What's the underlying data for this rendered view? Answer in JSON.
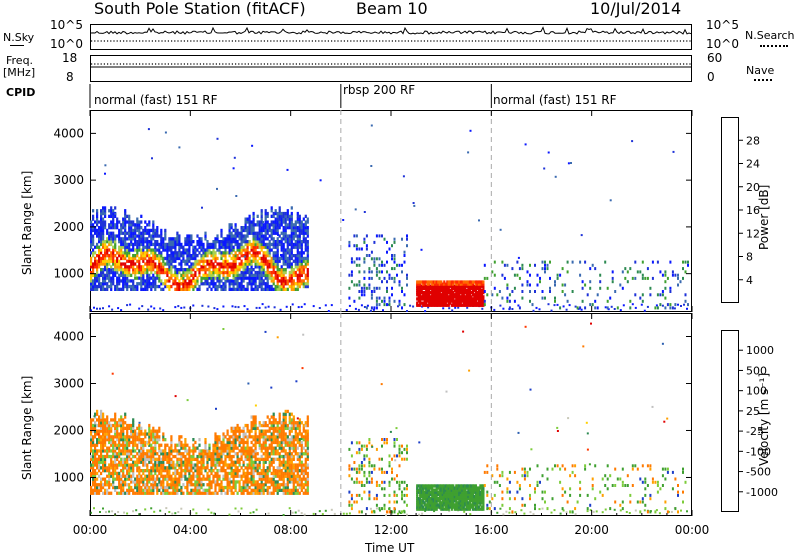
{
  "header": {
    "station": "South Pole Station (fitACF)",
    "beam": "Beam 10",
    "date": "10/Jul/2014"
  },
  "top_panels": {
    "nsky_label": "N.Sky",
    "nsearch_label": "N.Search",
    "noise_top_tick": "10^5",
    "noise_bottom_tick": "10^0",
    "freq_label_1": "Freq.",
    "freq_label_2": "[MHz]",
    "freq_ticks": [
      "18",
      "8"
    ],
    "nave_label": "Nave",
    "nave_ticks": [
      "60",
      "0"
    ],
    "cpid_label": "CPID",
    "cpid_segments": [
      {
        "label": "normal (fast) 151 RF",
        "start_hour": 0,
        "end_hour": 10
      },
      {
        "label": "rbsp 200 RF",
        "start_hour": 10,
        "end_hour": 16
      },
      {
        "label": "normal (fast) 151 RF",
        "start_hour": 16,
        "end_hour": 24
      }
    ]
  },
  "axes": {
    "ylabel": "Slant Range [km]",
    "xlabel": "Time UT",
    "yticks": [
      "4000",
      "3000",
      "2000",
      "1000"
    ],
    "xticks": [
      "00:00",
      "04:00",
      "08:00",
      "12:00",
      "16:00",
      "20:00",
      "00:00"
    ]
  },
  "power_colorbar": {
    "label": "Power [dB]",
    "ticks": [
      "28",
      "24",
      "20",
      "16",
      "12",
      "8",
      "4"
    ],
    "colors": [
      "#e00000",
      "#ff2a00",
      "#ff6a00",
      "#ff9a00",
      "#ffd000",
      "#a8d050",
      "#3fa030",
      "#2d8a52",
      "#3a6ab0",
      "#1e32d8",
      "#0a18ff"
    ]
  },
  "velocity_colorbar": {
    "label": "Velocity [m s⁻¹]",
    "ticks": [
      "1000",
      "500",
      "100",
      "25",
      "-25",
      "-100",
      "-500",
      "-1000"
    ],
    "colors": [
      "#1c3ec8",
      "#2c5fb0",
      "#2d8a52",
      "#3fa030",
      "#7ccc3a",
      "#c8c8b8",
      "#c0c0c0",
      "#ffd000",
      "#ffa000",
      "#ff7a00",
      "#ff3800",
      "#e00000"
    ]
  },
  "chart_data": {
    "type": "heatmap",
    "x_range_hours": [
      0,
      24
    ],
    "y_range_km": [
      180,
      4500
    ],
    "panels": [
      {
        "name": "Power",
        "scatter_regions": [
          {
            "x_hours": [
              0.0,
              8.7
            ],
            "y_km": [
              600,
              2500
            ],
            "dominant": "red/orange/green/blue patches"
          },
          {
            "x_hours": [
              13.0,
              15.7
            ],
            "y_km": [
              350,
              900
            ],
            "dominant": "red"
          },
          {
            "x_hours": [
              10.4,
              12.4
            ],
            "y_km": [
              300,
              1800
            ],
            "dominant": "blue/green"
          },
          {
            "x_hours": [
              16.0,
              24.0
            ],
            "y_km": [
              300,
              1200
            ],
            "dominant": "blue/green sparse"
          }
        ]
      },
      {
        "name": "Velocity",
        "scatter_regions": [
          {
            "x_hours": [
              0.0,
              8.7
            ],
            "y_km": [
              600,
              2500
            ],
            "dominant": "orange/green/gray"
          },
          {
            "x_hours": [
              13.0,
              15.7
            ],
            "y_km": [
              350,
              900
            ],
            "dominant": "green"
          },
          {
            "x_hours": [
              10.4,
              12.4
            ],
            "y_km": [
              300,
              1800
            ],
            "dominant": "green/orange"
          },
          {
            "x_hours": [
              16.0,
              24.0
            ],
            "y_km": [
              300,
              1200
            ],
            "dominant": "green/orange sparse"
          }
        ]
      }
    ]
  }
}
